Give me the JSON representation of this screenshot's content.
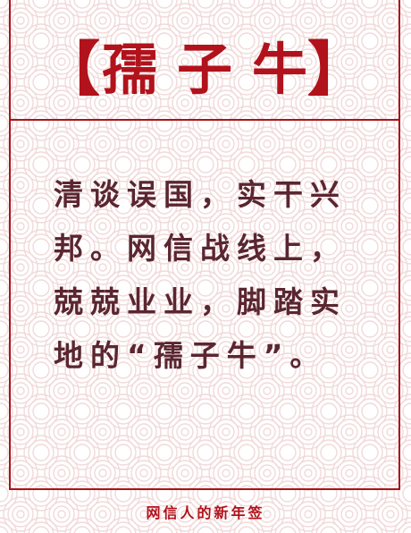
{
  "card": {
    "title_open": "【",
    "title_word": "孺子牛",
    "title_close": "】",
    "body": "清谈误国，实干兴邦。网信战线上，兢兢业业，脚踏实地的“孺子牛”。"
  },
  "footer": {
    "label": "网信人的新年签"
  },
  "colors": {
    "accent": "#b1121b",
    "text": "#5a2630",
    "pattern": "#f1d9d9"
  },
  "icons": {
    "background": "auspicious-cloud-pattern"
  }
}
